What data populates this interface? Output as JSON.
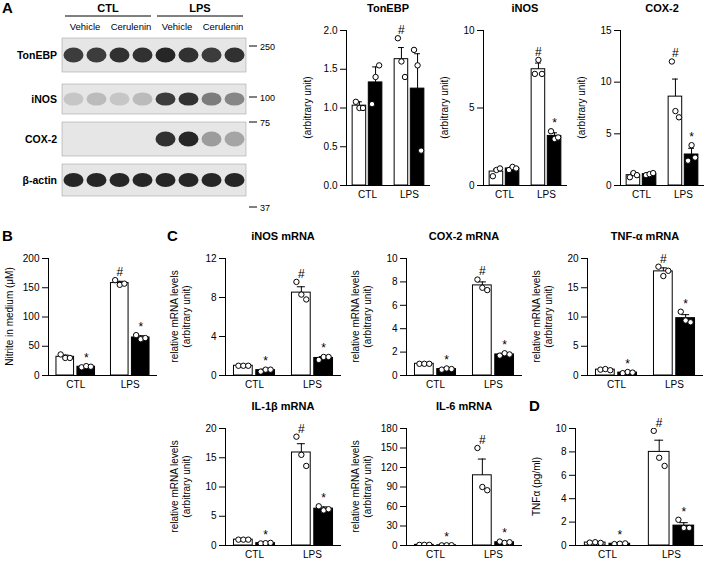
{
  "chart_data": [
    {
      "type": "bar",
      "title": "TonEBP",
      "ylabel": [
        "(arbitrary unit)"
      ],
      "categories": [
        "CTL",
        "LPS"
      ],
      "ylim": [
        0,
        2
      ],
      "yticks": [
        {
          "value": 0,
          "label": "0.0"
        },
        0.5,
        {
          "value": 1,
          "label": "1.0"
        },
        1.5,
        {
          "value": 2,
          "label": "2.0"
        }
      ],
      "series": [
        {
          "color": "#ffffff",
          "values": [
            1.03,
            1.63
          ],
          "errors": [
            0.05,
            0.15
          ],
          "points": [
            [
              1.08,
              1.0,
              1.0
            ],
            [
              1.9,
              1.6,
              1.4
            ]
          ],
          "annotations": [
            null,
            "#"
          ]
        },
        {
          "color": "#000000",
          "values": [
            1.33,
            1.25
          ],
          "errors": [
            0.2,
            0.45
          ],
          "points": [
            [
              1.05,
              1.4,
              1.55
            ],
            [
              1.75,
              1.55,
              0.45
            ]
          ],
          "annotations": [
            null,
            null
          ]
        }
      ]
    },
    {
      "type": "bar",
      "title": "iNOS",
      "ylabel": [
        "(arbitrary unit)"
      ],
      "categories": [
        "CTL",
        "LPS"
      ],
      "ylim": [
        0,
        10
      ],
      "yticks": [
        0,
        5,
        10
      ],
      "series": [
        {
          "color": "#ffffff",
          "values": [
            0.9,
            7.5
          ],
          "errors": [
            0.15,
            0.4
          ],
          "points": [
            [
              0.6,
              1.0,
              1.1
            ],
            [
              7.2,
              8.1,
              7.2
            ]
          ],
          "annotations": [
            null,
            "#"
          ]
        },
        {
          "color": "#000000",
          "values": [
            1.1,
            3.2
          ],
          "errors": [
            0.1,
            0.2
          ],
          "points": [
            [
              1.0,
              1.2,
              1.1
            ],
            [
              3.5,
              3.0,
              3.1
            ]
          ],
          "annotations": [
            null,
            "*"
          ]
        }
      ]
    },
    {
      "type": "bar",
      "title": "COX-2",
      "ylabel": [
        "(arbitrary unit)"
      ],
      "categories": [
        "CTL",
        "LPS"
      ],
      "ylim": [
        0,
        15
      ],
      "yticks": [
        0,
        5,
        10,
        15
      ],
      "series": [
        {
          "color": "#ffffff",
          "values": [
            1.0,
            8.6
          ],
          "errors": [
            0.2,
            1.7
          ],
          "points": [
            [
              0.8,
              1.2,
              1.0
            ],
            [
              12.0,
              7.2,
              6.6
            ]
          ],
          "annotations": [
            null,
            "#"
          ]
        },
        {
          "color": "#000000",
          "values": [
            1.1,
            3.0
          ],
          "errors": [
            0.1,
            0.6
          ],
          "points": [
            [
              1.0,
              1.1,
              1.2
            ],
            [
              2.4,
              3.9,
              2.7
            ]
          ],
          "annotations": [
            null,
            "*"
          ]
        }
      ]
    },
    {
      "type": "bar",
      "panel": "B",
      "ylabel": [
        "Nitrite in medium (μM)"
      ],
      "categories": [
        "CTL",
        "LPS"
      ],
      "ylim": [
        0,
        200
      ],
      "yticks": [
        0,
        50,
        100,
        150,
        200
      ],
      "series": [
        {
          "color": "#ffffff",
          "values": [
            32,
            158
          ],
          "errors": [
            3,
            3
          ],
          "points": [
            [
              36,
              30,
              30
            ],
            [
              163,
              155,
              157
            ]
          ],
          "annotations": [
            null,
            "#"
          ]
        },
        {
          "color": "#000000",
          "values": [
            15,
            65
          ],
          "errors": [
            1.5,
            3
          ],
          "points": [
            [
              14,
              16,
              15
            ],
            [
              69,
              62,
              64
            ]
          ],
          "annotations": [
            "*",
            "*"
          ]
        }
      ]
    },
    {
      "type": "bar",
      "panel": "C",
      "title": "iNOS mRNA",
      "ylabel": [
        "relative mRNA levels",
        "(arbitrary unit)"
      ],
      "categories": [
        "CTL",
        "LPS"
      ],
      "ylim": [
        0,
        12
      ],
      "yticks": [
        0,
        4,
        8,
        12
      ],
      "series": [
        {
          "color": "#ffffff",
          "values": [
            1.0,
            8.5
          ],
          "errors": [
            0.05,
            0.6
          ],
          "points": [
            [
              1.0,
              1.0,
              1.0
            ],
            [
              9.6,
              8.3,
              7.8
            ]
          ],
          "annotations": [
            null,
            "#"
          ]
        },
        {
          "color": "#000000",
          "values": [
            0.55,
            1.8
          ],
          "errors": [
            0.1,
            0.15
          ],
          "points": [
            [
              0.4,
              0.6,
              0.6
            ],
            [
              1.6,
              1.9,
              1.9
            ]
          ],
          "annotations": [
            "*",
            "*"
          ]
        }
      ]
    },
    {
      "type": "bar",
      "title": "COX-2 mRNA",
      "ylabel": [
        "relative mRNA levels",
        "(arbitrary unit)"
      ],
      "categories": [
        "CTL",
        "LPS"
      ],
      "ylim": [
        0,
        10
      ],
      "yticks": [
        0,
        2,
        4,
        6,
        8,
        10
      ],
      "series": [
        {
          "color": "#ffffff",
          "values": [
            1.0,
            7.7
          ],
          "errors": [
            0.05,
            0.3
          ],
          "points": [
            [
              1.0,
              1.0,
              1.0
            ],
            [
              8.2,
              7.5,
              7.3
            ]
          ],
          "annotations": [
            null,
            "#"
          ]
        },
        {
          "color": "#000000",
          "values": [
            0.55,
            1.8
          ],
          "errors": [
            0.05,
            0.1
          ],
          "points": [
            [
              0.5,
              0.6,
              0.55
            ],
            [
              1.7,
              1.9,
              1.8
            ]
          ],
          "annotations": [
            "*",
            "*"
          ]
        }
      ]
    },
    {
      "type": "bar",
      "title": "TNF-α mRNA",
      "ylabel": [
        "relative mRNA levels",
        "(arbitrary unit)"
      ],
      "categories": [
        "CTL",
        "LPS"
      ],
      "ylim": [
        0,
        20
      ],
      "yticks": [
        0,
        5,
        10,
        15,
        20
      ],
      "series": [
        {
          "color": "#ffffff",
          "values": [
            1.0,
            17.8
          ],
          "errors": [
            0.1,
            0.6
          ],
          "points": [
            [
              1.0,
              1.1,
              0.9
            ],
            [
              18.6,
              17.0,
              17.9
            ]
          ],
          "annotations": [
            null,
            "#"
          ]
        },
        {
          "color": "#000000",
          "values": [
            0.5,
            9.8
          ],
          "errors": [
            0.1,
            0.6
          ],
          "points": [
            [
              0.4,
              0.6,
              0.5
            ],
            [
              10.9,
              9.4,
              9.1
            ]
          ],
          "annotations": [
            "*",
            "*"
          ]
        }
      ]
    },
    {
      "type": "bar",
      "title": "IL-1β mRNA",
      "ylabel": [
        "relative mRNA levels",
        "(arbitrary unit)"
      ],
      "categories": [
        "CTL",
        "LPS"
      ],
      "ylim": [
        0,
        20
      ],
      "yticks": [
        0,
        5,
        10,
        15,
        20
      ],
      "series": [
        {
          "color": "#ffffff",
          "values": [
            1.0,
            15.9
          ],
          "errors": [
            0.1,
            1.5
          ],
          "points": [
            [
              1.0,
              1.0,
              1.0
            ],
            [
              18.6,
              15.5,
              13.6
            ]
          ],
          "annotations": [
            null,
            "#"
          ]
        },
        {
          "color": "#000000",
          "values": [
            0.4,
            6.3
          ],
          "errors": [
            0.05,
            0.3
          ],
          "points": [
            [
              0.35,
              0.4,
              0.45
            ],
            [
              6.7,
              6.0,
              6.2
            ]
          ],
          "annotations": [
            "*",
            "*"
          ]
        }
      ]
    },
    {
      "type": "bar",
      "title": "IL-6 mRNA",
      "ylabel": [
        "relative mRNA levels",
        "(arbitrary unit)"
      ],
      "categories": [
        "CTL",
        "LPS"
      ],
      "ylim": [
        0,
        180
      ],
      "yticks": [
        0,
        30,
        60,
        90,
        120,
        150,
        180
      ],
      "series": [
        {
          "color": "#ffffff",
          "values": [
            1,
            108
          ],
          "errors": [
            0.2,
            25
          ],
          "points": [
            [
              1,
              1,
              1
            ],
            [
              150,
              90,
              85
            ]
          ],
          "annotations": [
            null,
            "#"
          ]
        },
        {
          "color": "#000000",
          "values": [
            0.3,
            5
          ],
          "errors": [
            0.1,
            1
          ],
          "points": [
            [
              0.2,
              0.3,
              0.4
            ],
            [
              6,
              4,
              5
            ]
          ],
          "annotations": [
            "*",
            "*"
          ]
        }
      ]
    },
    {
      "type": "bar",
      "panel": "D",
      "ylabel": [
        "TNFα (pg/ml)"
      ],
      "categories": [
        "CTL",
        "LPS"
      ],
      "ylim": [
        0,
        10
      ],
      "yticks": [
        0,
        2,
        4,
        6,
        8,
        10
      ],
      "series": [
        {
          "color": "#ffffff",
          "values": [
            0.25,
            8.0
          ],
          "errors": [
            0.03,
            1.0
          ],
          "points": [
            [
              0.25,
              0.28,
              0.22
            ],
            [
              9.8,
              7.5,
              6.8
            ]
          ],
          "annotations": [
            null,
            "#"
          ]
        },
        {
          "color": "#000000",
          "values": [
            0.15,
            1.7
          ],
          "errors": [
            0.03,
            0.25
          ],
          "points": [
            [
              0.12,
              0.15,
              0.18
            ],
            [
              2.2,
              1.5,
              1.5
            ]
          ],
          "annotations": [
            "*",
            "*"
          ]
        }
      ]
    }
  ],
  "blot": {
    "panel": "A",
    "groups": [
      {
        "label": "CTL",
        "subgroups": [
          "Vehicle",
          "Cerulenin"
        ]
      },
      {
        "label": "LPS",
        "subgroups": [
          "Vehicle",
          "Cerulenin"
        ]
      }
    ],
    "rows": [
      {
        "label": "TonEBP",
        "intensity": [
          0.8,
          0.8,
          0.85,
          0.85,
          0.9,
          0.85,
          0.8,
          0.85
        ]
      },
      {
        "label": "iNOS",
        "intensity": [
          0.15,
          0.2,
          0.15,
          0.2,
          0.8,
          0.85,
          0.5,
          0.45
        ]
      },
      {
        "label": "COX-2",
        "intensity": [
          0,
          0,
          0,
          0,
          0.85,
          0.9,
          0.35,
          0.3
        ]
      },
      {
        "label": "β-actin",
        "intensity": [
          0.9,
          0.9,
          0.9,
          0.9,
          0.9,
          0.9,
          0.9,
          0.9
        ]
      }
    ],
    "markers": [
      250,
      100,
      75,
      37
    ]
  }
}
